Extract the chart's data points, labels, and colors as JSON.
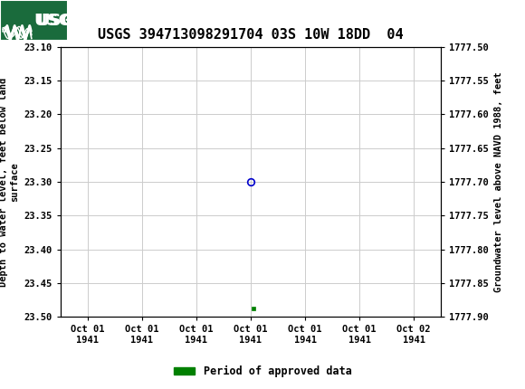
{
  "title": "USGS 394713098291704 03S 10W 18DD  04",
  "title_fontsize": 11,
  "header_color": "#1a6b3c",
  "ylabel_left": "Depth to water level, feet below land\nsurface",
  "ylabel_right": "Groundwater level above NAVD 1988, feet",
  "ylim_left": [
    23.1,
    23.5
  ],
  "ylim_right": [
    1777.5,
    1777.9
  ],
  "yticks_left": [
    23.1,
    23.15,
    23.2,
    23.25,
    23.3,
    23.35,
    23.4,
    23.45,
    23.5
  ],
  "ytick_labels_left": [
    "23.10",
    "23.15",
    "23.20",
    "23.25",
    "23.30",
    "23.35",
    "23.40",
    "23.45",
    "23.50"
  ],
  "yticks_right": [
    1777.5,
    1777.55,
    1777.6,
    1777.65,
    1777.7,
    1777.75,
    1777.8,
    1777.85,
    1777.9
  ],
  "ytick_labels_right": [
    "1777.50",
    "1777.55",
    "1777.60",
    "1777.65",
    "1777.70",
    "1777.75",
    "1777.80",
    "1777.85",
    "1777.90"
  ],
  "xtick_labels": [
    "Oct 01\n1941",
    "Oct 01\n1941",
    "Oct 01\n1941",
    "Oct 01\n1941",
    "Oct 01\n1941",
    "Oct 01\n1941",
    "Oct 02\n1941"
  ],
  "x_positions": [
    0,
    1,
    2,
    3,
    4,
    5,
    6
  ],
  "xlim": [
    -0.5,
    6.5
  ],
  "grid_color": "#cccccc",
  "background_color": "#ffffff",
  "circle_marker_x": 3.0,
  "circle_marker_y": 23.3,
  "circle_color": "#0000cc",
  "square_marker_x": 3.05,
  "square_marker_y": 23.487,
  "square_color": "#008000",
  "legend_label": "Period of approved data",
  "font_family": "monospace"
}
